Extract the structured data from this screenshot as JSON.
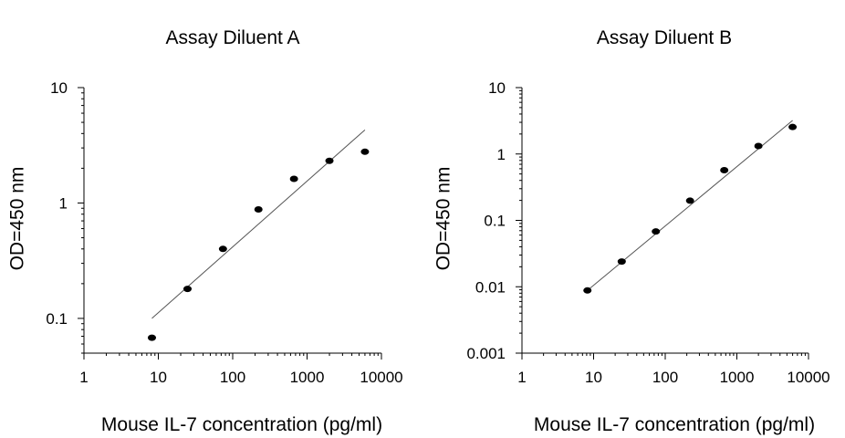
{
  "chart_data": [
    {
      "type": "scatter",
      "title": "Assay Diluent A",
      "xlabel": "Mouse IL-7 concentration (pg/ml)",
      "ylabel": "OD=450 nm",
      "xscale": "log",
      "yscale": "log",
      "xlim": [
        1,
        10000
      ],
      "ylim": [
        0.05,
        10
      ],
      "xticks": [
        1,
        10,
        100,
        1000,
        10000
      ],
      "xtick_labels": [
        "1",
        "10",
        "100",
        "1000",
        "10000"
      ],
      "yticks": [
        0.1,
        1,
        10
      ],
      "ytick_labels": [
        "0.1",
        "1",
        "10"
      ],
      "grid": false,
      "x": [
        8.2,
        24.7,
        74,
        222,
        667,
        2000,
        6000
      ],
      "y": [
        0.068,
        0.18,
        0.4,
        0.88,
        1.62,
        2.32,
        2.78
      ],
      "fit_line": {
        "x": [
          8.2,
          6000
        ],
        "y": [
          0.1,
          4.3
        ]
      }
    },
    {
      "type": "scatter",
      "title": "Assay Diluent B",
      "xlabel": "Mouse IL-7 concentration (pg/ml)",
      "ylabel": "OD=450 nm",
      "xscale": "log",
      "yscale": "log",
      "xlim": [
        1,
        10000
      ],
      "ylim": [
        0.001,
        10
      ],
      "xticks": [
        1,
        10,
        100,
        1000,
        10000
      ],
      "xtick_labels": [
        "1",
        "10",
        "100",
        "1000",
        "10000"
      ],
      "yticks": [
        0.001,
        0.01,
        0.1,
        1,
        10
      ],
      "ytick_labels": [
        "0.001",
        "0.01",
        "0.1",
        "1",
        "10"
      ],
      "grid": false,
      "x": [
        8.2,
        24.7,
        74,
        222,
        667,
        2000,
        6000
      ],
      "y": [
        0.0088,
        0.024,
        0.068,
        0.198,
        0.57,
        1.32,
        2.55
      ],
      "fit_line": {
        "x": [
          8.2,
          6000
        ],
        "y": [
          0.0088,
          3.2
        ]
      }
    }
  ]
}
